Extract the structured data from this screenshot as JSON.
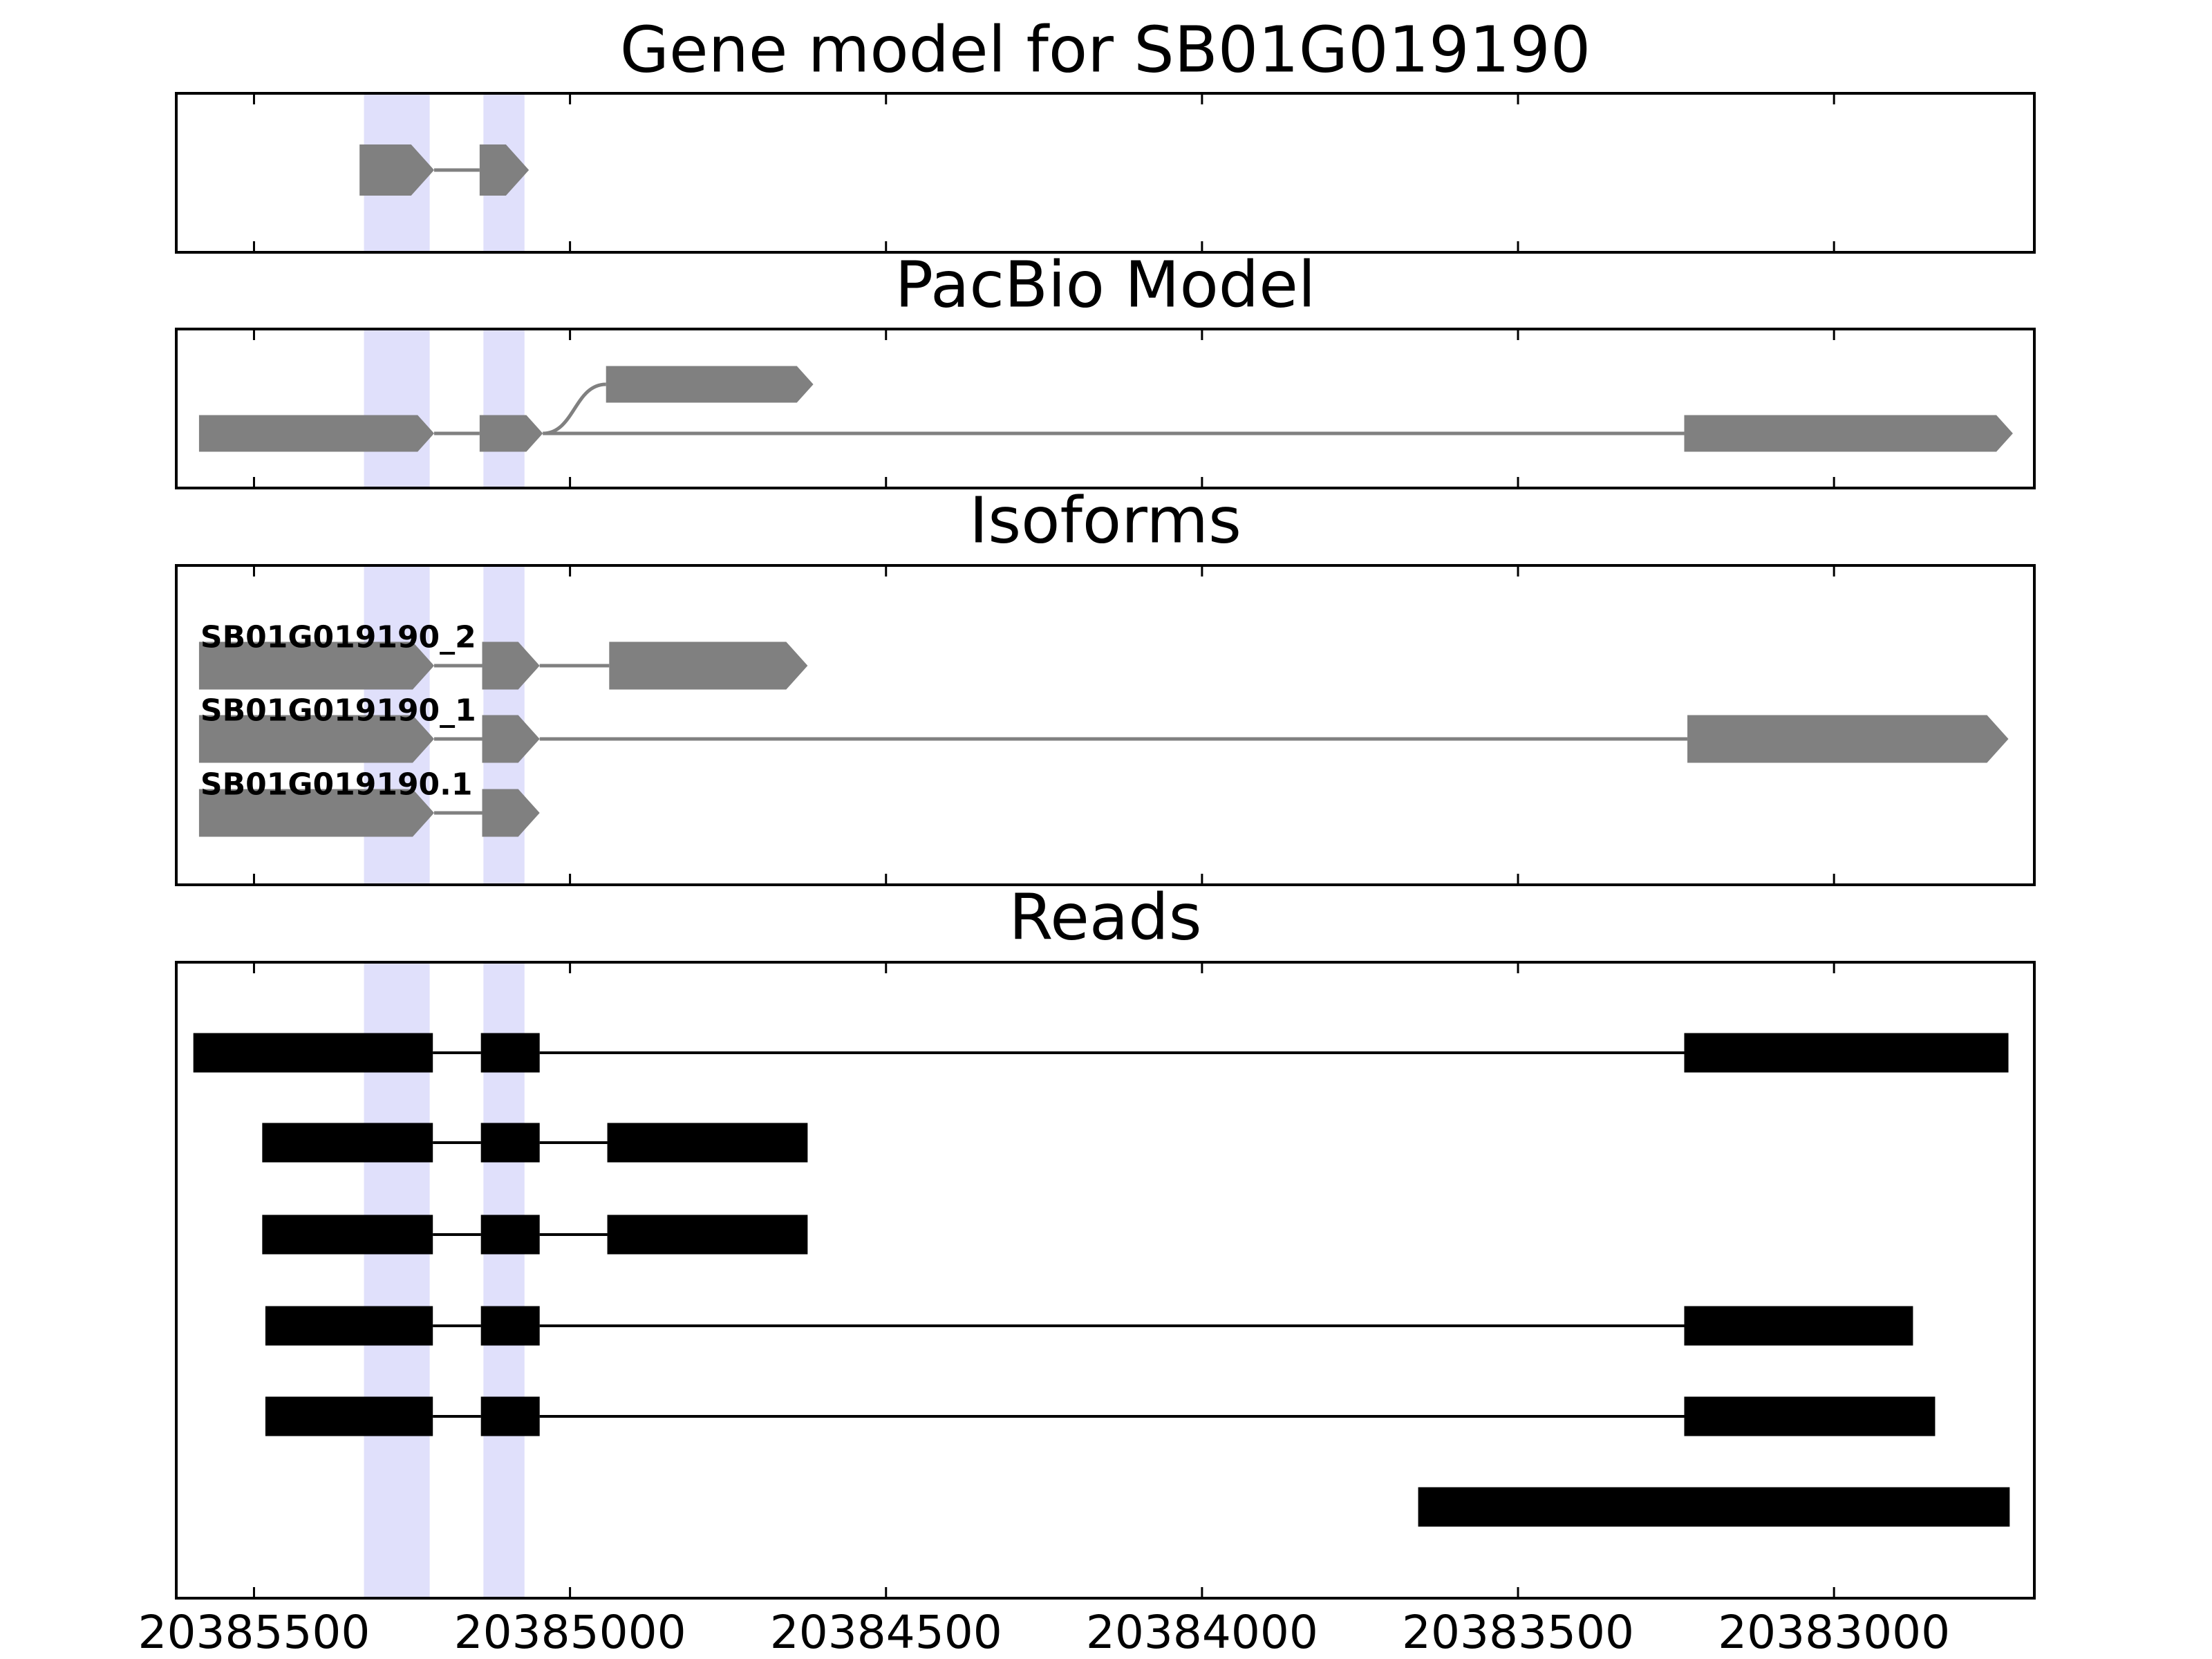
{
  "chart_data": {
    "type": "gene-model",
    "xlim": [
      20385623,
      20382683
    ],
    "xticks": [
      20385500,
      20385000,
      20384500,
      20384000,
      20383500,
      20383000
    ],
    "highlights": [
      [
        20385326,
        20385222
      ],
      [
        20385137,
        20385072
      ]
    ],
    "highlight_color": "#e0e0fb",
    "panels": [
      {
        "title": "Gene model for SB01G019190",
        "color": "#808080",
        "arrows": true,
        "merged": false,
        "transcripts": [
          {
            "exons": [
              [
                20385333,
                20385215
              ],
              [
                20385143,
                20385065
              ]
            ]
          }
        ]
      },
      {
        "title": "PacBio Model",
        "color": "#808080",
        "arrows": true,
        "merged": true,
        "transcripts": [
          {
            "exons": [
              [
                20385587,
                20385215
              ],
              [
                20385143,
                20385043
              ],
              [
                20383237,
                20382717
              ]
            ]
          },
          {
            "exons": [
              [
                20385587,
                20385215
              ],
              [
                20385143,
                20385043
              ],
              [
                20384943,
                20384615
              ]
            ]
          }
        ]
      },
      {
        "title": "Isoforms",
        "color": "#808080",
        "arrows": true,
        "merged": false,
        "transcripts": [
          {
            "name": "SB01G019190_2",
            "exons": [
              [
                20385587,
                20385215
              ],
              [
                20385139,
                20385048
              ],
              [
                20384938,
                20384624
              ]
            ]
          },
          {
            "name": "SB01G019190_1",
            "exons": [
              [
                20385587,
                20385215
              ],
              [
                20385139,
                20385048
              ],
              [
                20383232,
                20382724
              ]
            ]
          },
          {
            "name": "SB01G019190.1",
            "exons": [
              [
                20385587,
                20385215
              ],
              [
                20385139,
                20385048
              ]
            ]
          }
        ]
      },
      {
        "title": "Reads",
        "color": "#000000",
        "arrows": false,
        "merged": false,
        "transcripts": [
          {
            "exons": [
              [
                20385596,
                20385217
              ],
              [
                20385141,
                20385048
              ],
              [
                20383237,
                20382724
              ]
            ]
          },
          {
            "exons": [
              [
                20385487,
                20385217
              ],
              [
                20385141,
                20385048
              ],
              [
                20384941,
                20384624
              ]
            ]
          },
          {
            "exons": [
              [
                20385487,
                20385217
              ],
              [
                20385141,
                20385048
              ],
              [
                20384941,
                20384624
              ]
            ]
          },
          {
            "exons": [
              [
                20385482,
                20385217
              ],
              [
                20385141,
                20385048
              ],
              [
                20383237,
                20382875
              ]
            ]
          },
          {
            "exons": [
              [
                20385482,
                20385217
              ],
              [
                20385141,
                20385048
              ],
              [
                20383237,
                20382840
              ]
            ]
          },
          {
            "exons": [
              [
                20383658,
                20382722
              ]
            ]
          }
        ]
      }
    ]
  }
}
